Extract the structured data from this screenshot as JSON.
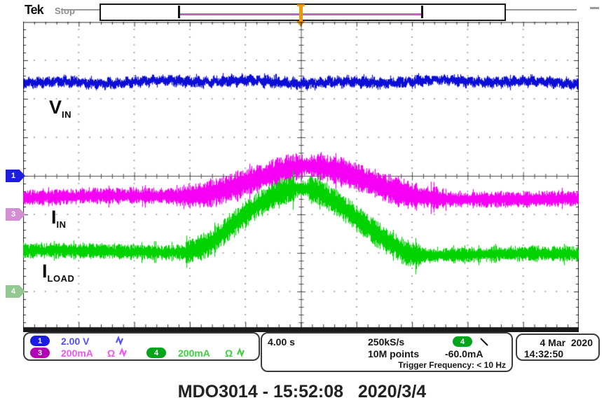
{
  "scope": {
    "brand": "Tek",
    "acq_status": "Stop",
    "trace_labels": {
      "vin_main": "V",
      "vin_sub": "IN",
      "iin_main": "I",
      "iin_sub": "IN",
      "iload_main": "I",
      "iload_sub": "LOAD"
    },
    "markers": {
      "ch1": "1",
      "ch3": "3",
      "ch4": "4"
    },
    "readouts": {
      "ch1_num": "1",
      "ch1_scale": "2.00 V",
      "ch3_num": "3",
      "ch3_scale": "200mA",
      "ch3_coupling": "Ω",
      "ch4_num": "4",
      "ch4_scale": "200mA",
      "ch4_coupling": "Ω",
      "horizontal_scale": "4.00 s",
      "sample_rate": "250kS/s",
      "record_length": "10M points",
      "trigger_source_num": "4",
      "trigger_level": "-60.0mA",
      "trigger_frequency": "Trigger Frequency: < 10 Hz",
      "date": "4 Mar  2020",
      "time": "14:32:50"
    },
    "caption": "MDO3014 - 15:52:08   2020/3/4"
  },
  "colors": {
    "ch1_trace": "#0d0dd8",
    "ch3_trace": "#f500f5",
    "ch4_trace": "#00d300",
    "ch1_pill": "#1c1ce0",
    "ch3_pill": "#b400b4",
    "ch4_pill": "#00a51c",
    "ch1_text": "#5050ff",
    "ch3_text": "#f055f0",
    "ch4_text": "#3fcf3f",
    "marker1_bg": "#1e1ee0",
    "marker3_bg": "#d48ed4",
    "marker4_bg": "#90c890",
    "trigger_marker": "#ff9400",
    "zoom_window_line": "#c860c8"
  },
  "chart_data": {
    "type": "line",
    "title": "Oscilloscope capture: V_IN, I_IN and I_LOAD vs time",
    "x_axis": {
      "unit": "divisions",
      "divisions": 10,
      "seconds_per_div": 4.0,
      "trigger_position_div": 5
    },
    "y_axis": {
      "unit": "divisions",
      "divisions": 8
    },
    "grid": {
      "style": "dotted-divisions",
      "minor_per_div": 5
    },
    "series": [
      {
        "name": "V_IN (CH1)",
        "color": "#0d0dd8",
        "vertical_scale": "2.00 V/div",
        "ground_ref_div": 4.0,
        "noise_half_div": 0.1,
        "ripple": true,
        "points_div": [
          [
            0,
            1.56
          ],
          [
            10,
            1.56
          ]
        ]
      },
      {
        "name": "I_IN (CH3)",
        "color": "#f500f5",
        "vertical_scale": "200 mA/div",
        "ground_ref_div": 5.0,
        "noise_half_div": 0.15,
        "ripple": false,
        "points_div": [
          [
            0,
            4.54
          ],
          [
            2.85,
            4.54
          ],
          [
            3.3,
            4.47
          ],
          [
            3.8,
            4.26
          ],
          [
            4.3,
            4.0
          ],
          [
            4.75,
            3.8
          ],
          [
            5.05,
            3.74
          ],
          [
            5.35,
            3.77
          ],
          [
            5.75,
            3.92
          ],
          [
            6.15,
            4.13
          ],
          [
            6.6,
            4.38
          ],
          [
            7.05,
            4.54
          ],
          [
            7.5,
            4.59
          ],
          [
            10,
            4.59
          ]
        ]
      },
      {
        "name": "I_LOAD (CH4)",
        "color": "#00d300",
        "vertical_scale": "200 mA/div",
        "ground_ref_div": 7.0,
        "noise_half_div": 0.14,
        "ripple": false,
        "points_div": [
          [
            0,
            5.96
          ],
          [
            2.95,
            5.96
          ],
          [
            3.35,
            5.75
          ],
          [
            3.75,
            5.28
          ],
          [
            4.15,
            4.83
          ],
          [
            4.55,
            4.5
          ],
          [
            4.85,
            4.37
          ],
          [
            5.15,
            4.36
          ],
          [
            5.35,
            4.45
          ],
          [
            5.75,
            4.82
          ],
          [
            6.15,
            5.28
          ],
          [
            6.55,
            5.68
          ],
          [
            6.9,
            5.99
          ],
          [
            7.1,
            6.04
          ],
          [
            10,
            6.04
          ]
        ]
      }
    ]
  }
}
